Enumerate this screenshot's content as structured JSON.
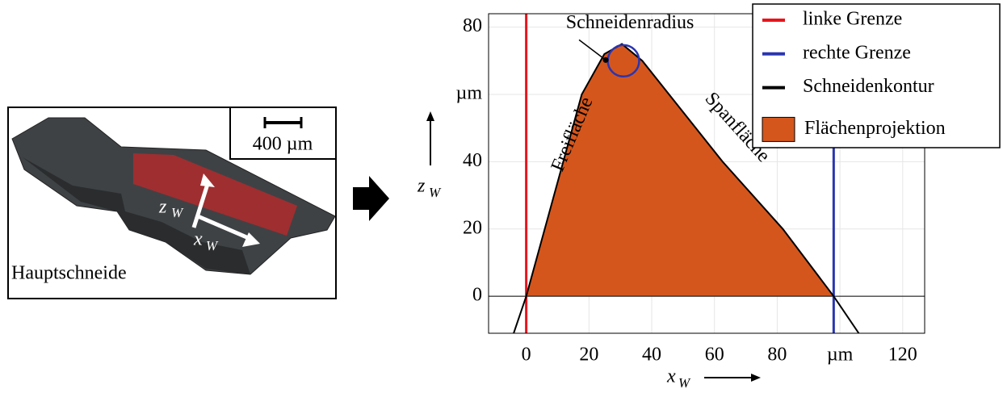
{
  "image_panel": {
    "scale_bar": "400 µm",
    "label": "Hauptschneide",
    "z_label": "z",
    "z_sub": "W",
    "x_label": "x",
    "x_sub": "W"
  },
  "chart_data": {
    "type": "line",
    "xlabel": "x",
    "xlabel_sub": "W",
    "ylabel": "z",
    "ylabel_sub": "W",
    "xlim": [
      -12,
      127
    ],
    "ylim": [
      -11,
      84
    ],
    "xticks": [
      0,
      20,
      40,
      60,
      80,
      {
        "value": 100,
        "label": "µm"
      },
      120
    ],
    "yticks": [
      0,
      20,
      40,
      {
        "value": 60,
        "label": "µm"
      },
      80
    ],
    "grid": true,
    "zeroline": true,
    "legend": "upper right",
    "series": [
      {
        "name": "linke Grenze",
        "color": "#e8141c",
        "x": [
          0,
          0
        ],
        "values": [
          -11,
          84
        ]
      },
      {
        "name": "rechte Grenze",
        "color": "#2a35b0",
        "x": [
          98,
          98
        ],
        "values": [
          -11,
          84
        ]
      },
      {
        "name": "Schneidenkontur",
        "color": "#000000",
        "x": [
          -4,
          0,
          11.8,
          17.7,
          24.9,
          30.5,
          37,
          62.6,
          81.8,
          98,
          106
        ],
        "values": [
          -11,
          0,
          40,
          60,
          72,
          75,
          70,
          40,
          20,
          0,
          -11
        ]
      },
      {
        "name": "Flächenprojektion",
        "color": "#d4561c",
        "fill": true,
        "x": [
          0,
          11.8,
          17.7,
          24.9,
          30.5,
          37,
          62.6,
          81.8,
          98
        ],
        "values": [
          0,
          40,
          60,
          72,
          75,
          70,
          40,
          20,
          0
        ]
      }
    ],
    "circle": {
      "label": "Schneidenradius",
      "color": "#2a35b0",
      "cx": 31,
      "cy": 70,
      "r": 5
    },
    "annotations": [
      {
        "text": "Freifläche",
        "x": 15,
        "y": 48,
        "angle": -67
      },
      {
        "text": "Spanfläche",
        "x": 67,
        "y": 50,
        "angle": 48
      }
    ]
  }
}
